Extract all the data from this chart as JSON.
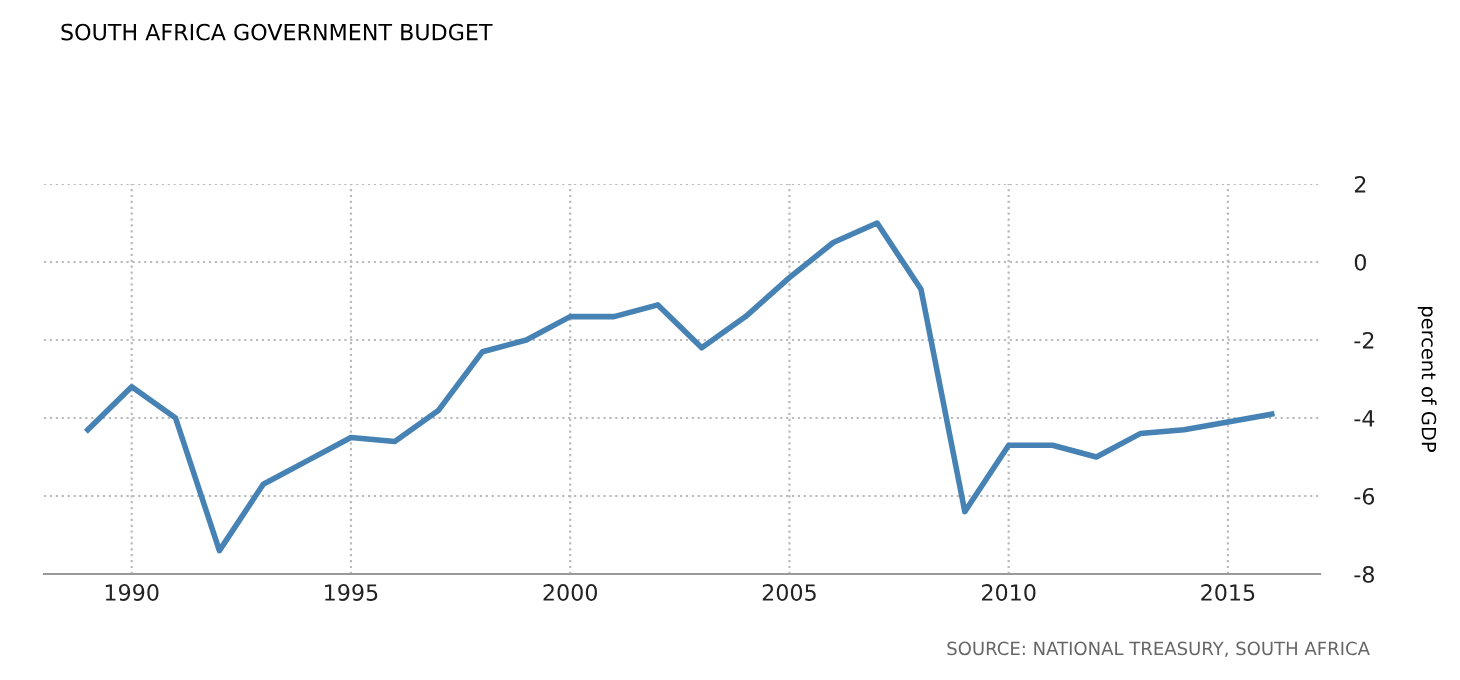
{
  "chart_data": {
    "type": "line",
    "title": "SOUTH AFRICA GOVERNMENT BUDGET",
    "ylabel": "percent of GDP",
    "annotations": [
      "SOURCE: NATIONAL TREASURY, SOUTH AFRICA"
    ],
    "x": [
      1989,
      1990,
      1991,
      1992,
      1993,
      1994,
      1995,
      1996,
      1997,
      1998,
      1999,
      2000,
      2001,
      2002,
      2003,
      2004,
      2005,
      2006,
      2007,
      2008,
      2009,
      2010,
      2011,
      2012,
      2013,
      2014,
      2015,
      2016
    ],
    "series": [
      {
        "color": "#4682b4",
        "values": [
          -4.3,
          -3.2,
          -4.0,
          -7.4,
          -5.7,
          -5.1,
          -4.5,
          -4.6,
          -3.8,
          -2.3,
          -2.0,
          -1.4,
          -1.4,
          -1.1,
          -2.2,
          -1.4,
          -0.4,
          0.5,
          1.0,
          -0.7,
          -6.4,
          -4.7,
          -4.7,
          -5.0,
          -4.4,
          -4.3,
          -4.1,
          -3.9
        ]
      }
    ],
    "xlim": [
      1988,
      2017.1
    ],
    "xticks": [
      1990,
      1995,
      2000,
      2005,
      2010,
      2015
    ],
    "ylim": [
      -8,
      2
    ],
    "yticks": [
      -8,
      -6,
      -4,
      -2,
      0,
      2
    ],
    "grid": true,
    "line_style": "solid",
    "marker": "none",
    "legend": false
  }
}
